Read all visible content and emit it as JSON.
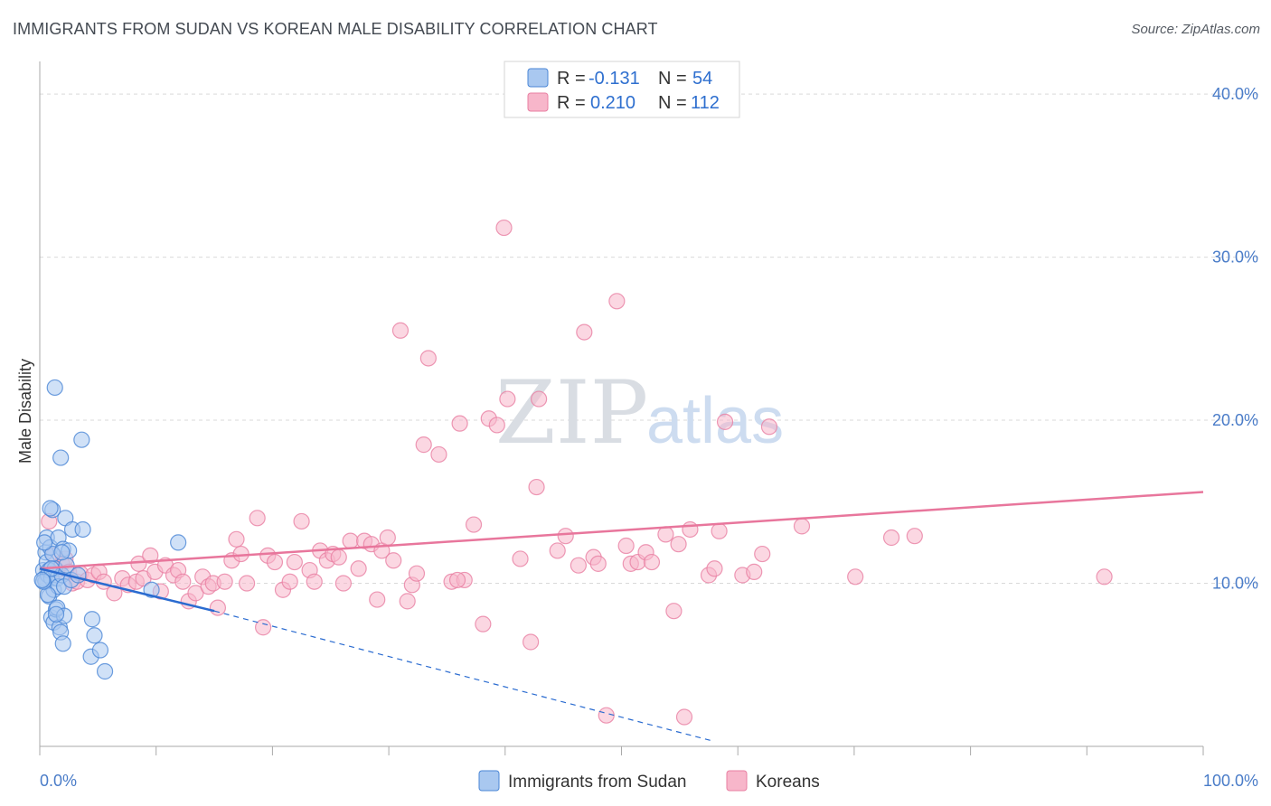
{
  "header": {
    "title": "IMMIGRANTS FROM SUDAN VS KOREAN MALE DISABILITY CORRELATION CHART",
    "source": "Source: ZipAtlas.com"
  },
  "watermark": {
    "zip": "ZIP",
    "atlas": "atlas"
  },
  "colors": {
    "sudan_fill": "#a9c8f0",
    "sudan_stroke": "#4a86d6",
    "sudan_line": "#2a6bd0",
    "korean_fill": "#f7b6ca",
    "korean_stroke": "#e87fa2",
    "korean_line": "#e8769c",
    "tick_text": "#4a7cc8",
    "grid": "#d9d9d9"
  },
  "legend": {
    "rows": [
      {
        "r_label": "R =",
        "r_value": "-0.131",
        "n_label": "N =",
        "n_value": "54"
      },
      {
        "r_label": "R =",
        "r_value": "0.210",
        "n_label": "N =",
        "n_value": "112"
      }
    ]
  },
  "chart_data": {
    "type": "scatter",
    "title": "IMMIGRANTS FROM SUDAN VS KOREAN MALE DISABILITY CORRELATION CHART",
    "xlabel": "",
    "ylabel": "Male Disability",
    "xlim": [
      0,
      100
    ],
    "ylim": [
      0,
      42
    ],
    "x_tick_labels": [
      "0.0%",
      "100.0%"
    ],
    "y_ticks": [
      10,
      20,
      30,
      40
    ],
    "y_tick_labels": [
      "10.0%",
      "20.0%",
      "30.0%",
      "40.0%"
    ],
    "grid": true,
    "series": [
      {
        "name": "Immigrants from Sudan",
        "r": -0.131,
        "n": 54,
        "trend": {
          "x_start": 0,
          "y_start": 10.9,
          "x_end": 15,
          "y_end": 8.3,
          "dashed_to_x": 58,
          "dashed_to_y": 0.3
        },
        "points": [
          [
            0.3,
            10.8
          ],
          [
            0.4,
            10.3
          ],
          [
            0.5,
            11.9
          ],
          [
            0.5,
            10.1
          ],
          [
            0.6,
            11.3
          ],
          [
            0.6,
            12.8
          ],
          [
            0.7,
            10.5
          ],
          [
            0.8,
            9.2
          ],
          [
            0.8,
            10.8
          ],
          [
            0.9,
            12.2
          ],
          [
            1.0,
            7.9
          ],
          [
            1.0,
            10.3
          ],
          [
            1.1,
            14.5
          ],
          [
            1.2,
            9.6
          ],
          [
            1.2,
            7.6
          ],
          [
            1.3,
            10.9
          ],
          [
            1.3,
            22.0
          ],
          [
            1.4,
            8.4
          ],
          [
            1.5,
            8.5
          ],
          [
            1.5,
            10.3
          ],
          [
            1.6,
            12.8
          ],
          [
            1.6,
            9.8
          ],
          [
            1.7,
            7.3
          ],
          [
            1.8,
            17.7
          ],
          [
            1.8,
            7.0
          ],
          [
            1.9,
            10.5
          ],
          [
            2.0,
            12.1
          ],
          [
            2.0,
            6.3
          ],
          [
            2.1,
            8.0
          ],
          [
            2.1,
            9.8
          ],
          [
            2.2,
            14.0
          ],
          [
            2.3,
            11.1
          ],
          [
            2.5,
            12.0
          ],
          [
            2.7,
            10.2
          ],
          [
            2.8,
            13.3
          ],
          [
            3.3,
            10.5
          ],
          [
            3.6,
            18.8
          ],
          [
            3.7,
            13.3
          ],
          [
            4.4,
            5.5
          ],
          [
            4.5,
            7.8
          ],
          [
            4.7,
            6.8
          ],
          [
            5.2,
            5.9
          ],
          [
            5.6,
            4.6
          ],
          [
            9.6,
            9.6
          ],
          [
            11.9,
            12.5
          ],
          [
            0.9,
            14.6
          ],
          [
            1.4,
            8.1
          ],
          [
            0.7,
            9.3
          ],
          [
            1.1,
            11.8
          ],
          [
            0.4,
            12.5
          ],
          [
            1.9,
            11.9
          ],
          [
            0.3,
            10.1
          ],
          [
            1.0,
            10.9
          ],
          [
            0.2,
            10.2
          ]
        ]
      },
      {
        "name": "Koreans",
        "r": 0.21,
        "n": 112,
        "trend": {
          "x_start": 0,
          "y_start": 10.9,
          "x_end": 100,
          "y_end": 15.6
        },
        "points": [
          [
            0.8,
            13.8
          ],
          [
            1.2,
            11.7
          ],
          [
            1.5,
            10.8
          ],
          [
            1.9,
            11.2
          ],
          [
            2.2,
            11.5
          ],
          [
            2.5,
            10.7
          ],
          [
            2.8,
            10.0
          ],
          [
            3.2,
            10.1
          ],
          [
            3.5,
            10.6
          ],
          [
            4.1,
            10.2
          ],
          [
            4.6,
            10.5
          ],
          [
            5.1,
            10.7
          ],
          [
            5.5,
            10.1
          ],
          [
            6.4,
            9.4
          ],
          [
            7.1,
            10.3
          ],
          [
            7.6,
            9.9
          ],
          [
            8.3,
            10.1
          ],
          [
            8.5,
            11.2
          ],
          [
            8.9,
            10.3
          ],
          [
            9.5,
            11.7
          ],
          [
            9.9,
            10.7
          ],
          [
            10.4,
            9.5
          ],
          [
            10.8,
            11.1
          ],
          [
            11.5,
            10.5
          ],
          [
            11.9,
            10.8
          ],
          [
            12.3,
            10.1
          ],
          [
            12.8,
            8.9
          ],
          [
            13.4,
            9.4
          ],
          [
            14.0,
            10.4
          ],
          [
            14.5,
            9.8
          ],
          [
            14.9,
            10.0
          ],
          [
            15.3,
            8.5
          ],
          [
            15.9,
            10.1
          ],
          [
            16.5,
            11.4
          ],
          [
            16.9,
            12.7
          ],
          [
            17.3,
            11.8
          ],
          [
            17.8,
            10.0
          ],
          [
            18.7,
            14.0
          ],
          [
            19.2,
            7.3
          ],
          [
            19.6,
            11.7
          ],
          [
            20.2,
            11.3
          ],
          [
            20.9,
            9.6
          ],
          [
            21.5,
            10.1
          ],
          [
            21.9,
            11.3
          ],
          [
            22.5,
            13.8
          ],
          [
            23.2,
            10.8
          ],
          [
            23.6,
            10.1
          ],
          [
            24.1,
            12.0
          ],
          [
            24.7,
            11.4
          ],
          [
            25.2,
            11.8
          ],
          [
            25.7,
            11.6
          ],
          [
            26.1,
            10.0
          ],
          [
            26.7,
            12.6
          ],
          [
            27.4,
            10.9
          ],
          [
            27.9,
            12.6
          ],
          [
            28.5,
            12.4
          ],
          [
            29.0,
            9.0
          ],
          [
            29.4,
            12.0
          ],
          [
            29.9,
            12.8
          ],
          [
            30.4,
            11.4
          ],
          [
            31.0,
            25.5
          ],
          [
            31.6,
            8.9
          ],
          [
            32.0,
            9.9
          ],
          [
            32.4,
            10.6
          ],
          [
            33.0,
            18.5
          ],
          [
            33.4,
            23.8
          ],
          [
            34.3,
            17.9
          ],
          [
            35.4,
            10.1
          ],
          [
            36.1,
            19.8
          ],
          [
            36.5,
            10.2
          ],
          [
            37.3,
            13.6
          ],
          [
            38.1,
            7.5
          ],
          [
            38.6,
            20.1
          ],
          [
            39.3,
            19.7
          ],
          [
            39.9,
            31.8
          ],
          [
            40.2,
            21.3
          ],
          [
            41.3,
            11.5
          ],
          [
            42.2,
            6.4
          ],
          [
            42.7,
            15.9
          ],
          [
            42.9,
            21.3
          ],
          [
            45.2,
            12.9
          ],
          [
            46.3,
            11.1
          ],
          [
            46.8,
            25.4
          ],
          [
            47.6,
            11.6
          ],
          [
            48.0,
            11.2
          ],
          [
            48.7,
            1.9
          ],
          [
            49.6,
            27.3
          ],
          [
            50.4,
            12.3
          ],
          [
            50.8,
            11.2
          ],
          [
            51.4,
            11.3
          ],
          [
            52.1,
            11.9
          ],
          [
            52.6,
            11.3
          ],
          [
            53.8,
            13.0
          ],
          [
            54.5,
            8.3
          ],
          [
            54.9,
            12.4
          ],
          [
            55.4,
            1.8
          ],
          [
            55.9,
            13.3
          ],
          [
            57.5,
            10.5
          ],
          [
            58.0,
            10.9
          ],
          [
            58.4,
            13.2
          ],
          [
            58.9,
            19.9
          ],
          [
            60.4,
            10.5
          ],
          [
            61.4,
            10.7
          ],
          [
            62.1,
            11.8
          ],
          [
            62.7,
            19.6
          ],
          [
            65.5,
            13.5
          ],
          [
            70.1,
            10.4
          ],
          [
            73.2,
            12.8
          ],
          [
            75.2,
            12.9
          ],
          [
            91.5,
            10.4
          ],
          [
            35.9,
            10.2
          ],
          [
            44.5,
            12.0
          ]
        ]
      }
    ]
  }
}
